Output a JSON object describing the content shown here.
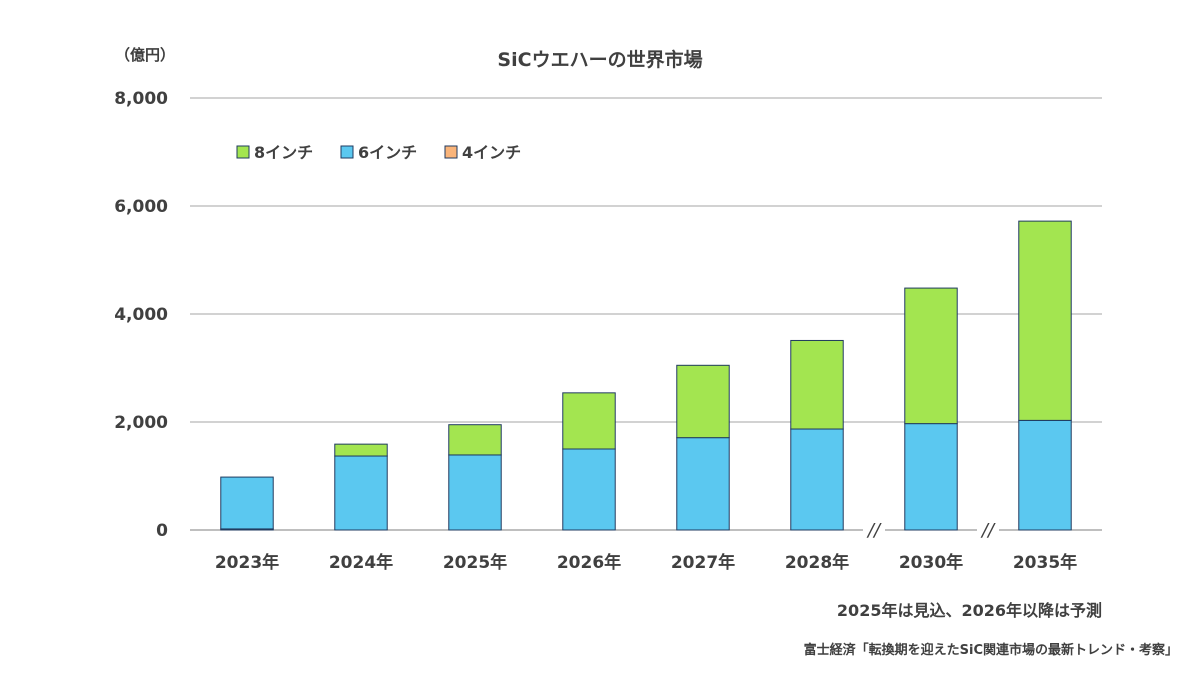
{
  "chart_data": {
    "type": "bar",
    "stacked": true,
    "title": "SiCウエハーの世界市場",
    "unit_label": "（億円）",
    "categories": [
      "2023年",
      "2024年",
      "2025年",
      "2026年",
      "2027年",
      "2028年",
      "2030年",
      "2035年"
    ],
    "series": [
      {
        "name": "4インチ",
        "color": "#F9B47A",
        "values": [
          20,
          0,
          0,
          0,
          0,
          0,
          0,
          0
        ]
      },
      {
        "name": "6インチ",
        "color": "#5BC8F0",
        "values": [
          960,
          1370,
          1390,
          1500,
          1710,
          1870,
          1970,
          2030
        ]
      },
      {
        "name": "8インチ",
        "color": "#A3E550",
        "values": [
          0,
          220,
          560,
          1040,
          1340,
          1640,
          2510,
          3690
        ]
      }
    ],
    "ylim": [
      0,
      8000
    ],
    "yticks": [
      0,
      2000,
      4000,
      6000,
      8000
    ],
    "ytick_labels": [
      "0",
      "2,000",
      "4,000",
      "6,000",
      "8,000"
    ],
    "legend_order": [
      "8インチ",
      "6インチ",
      "4インチ"
    ],
    "legend_position": "top-left",
    "grid": true,
    "axis_breaks_before": [
      "2030年",
      "2035年"
    ],
    "break_mark": "//",
    "note": "2025年は見込、2026年以降は予測",
    "source": "富士経済「転換期を迎えたSiC関連市場の最新トレンド・考察」",
    "bar_outline_color": "#1F3A5F",
    "grid_color": "#A6A6A6"
  }
}
